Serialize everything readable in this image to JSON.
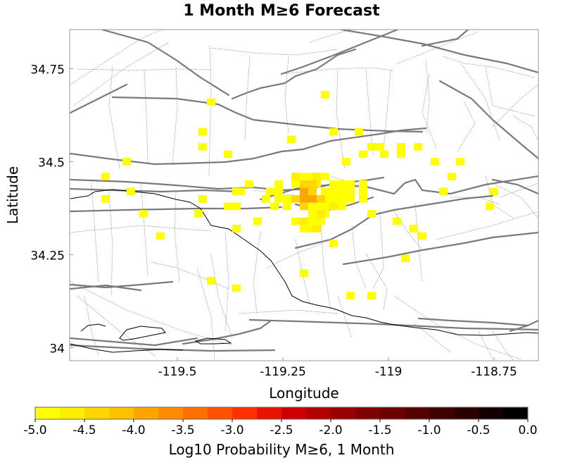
{
  "chart_data": {
    "type": "heatmap",
    "title": "1 Month M≥6 Forecast",
    "xlabel": "Longitude",
    "ylabel": "Latitude",
    "xlim": [
      -119.755,
      -118.645
    ],
    "ylim": [
      33.965,
      34.855
    ],
    "x_ticks": [
      {
        "value": -119.5,
        "label": "-119.5"
      },
      {
        "value": -119.25,
        "label": "-119.25"
      },
      {
        "value": -119.0,
        "label": "-119"
      },
      {
        "value": -118.75,
        "label": "-118.75"
      }
    ],
    "y_ticks": [
      {
        "value": 34.75,
        "label": "34.75"
      },
      {
        "value": 34.5,
        "label": "34.5"
      },
      {
        "value": 34.25,
        "label": "34.25"
      },
      {
        "value": 34.0,
        "label": "34"
      }
    ],
    "grid": false,
    "cell_size_deg": 0.02,
    "cell_value_scale": "Log10 Probability M≥6, 1 Month",
    "cells": [
      [
        -119.42,
        34.66,
        -4.9
      ],
      [
        -119.15,
        34.68,
        -4.9
      ],
      [
        -119.44,
        34.58,
        -4.9
      ],
      [
        -119.23,
        34.56,
        -4.9
      ],
      [
        -119.13,
        34.58,
        -4.9
      ],
      [
        -119.07,
        34.58,
        -4.9
      ],
      [
        -119.44,
        34.54,
        -4.9
      ],
      [
        -119.38,
        34.52,
        -4.9
      ],
      [
        -119.06,
        34.52,
        -4.9
      ],
      [
        -119.04,
        34.54,
        -4.9
      ],
      [
        -119.02,
        34.54,
        -4.9
      ],
      [
        -119.01,
        34.52,
        -4.9
      ],
      [
        -118.97,
        34.54,
        -4.9
      ],
      [
        -118.97,
        34.52,
        -4.9
      ],
      [
        -118.93,
        34.54,
        -4.9
      ],
      [
        -119.62,
        34.5,
        -4.9
      ],
      [
        -119.1,
        34.5,
        -4.9
      ],
      [
        -118.89,
        34.5,
        -4.9
      ],
      [
        -118.83,
        34.5,
        -4.9
      ],
      [
        -119.67,
        34.46,
        -4.9
      ],
      [
        -119.2,
        34.46,
        -4.9
      ],
      [
        -119.18,
        34.46,
        -4.9
      ],
      [
        -119.15,
        34.46,
        -4.9
      ],
      [
        -119.33,
        34.44,
        -4.9
      ],
      [
        -119.26,
        34.44,
        -4.9
      ],
      [
        -119.22,
        34.44,
        -4.9
      ],
      [
        -119.13,
        34.44,
        -4.9
      ],
      [
        -119.11,
        34.44,
        -4.9
      ],
      [
        -119.09,
        34.44,
        -4.9
      ],
      [
        -119.06,
        34.44,
        -4.9
      ],
      [
        -118.85,
        34.46,
        -4.9
      ],
      [
        -119.61,
        34.42,
        -4.9
      ],
      [
        -119.36,
        34.42,
        -4.9
      ],
      [
        -119.35,
        34.42,
        -4.9
      ],
      [
        -119.28,
        34.42,
        -4.9
      ],
      [
        -119.26,
        34.42,
        -4.9
      ],
      [
        -119.15,
        34.42,
        -4.9
      ],
      [
        -119.13,
        34.42,
        -4.9
      ],
      [
        -119.11,
        34.42,
        -4.9
      ],
      [
        -119.09,
        34.42,
        -4.9
      ],
      [
        -119.06,
        34.42,
        -4.9
      ],
      [
        -118.87,
        34.42,
        -4.9
      ],
      [
        -118.75,
        34.42,
        -4.9
      ],
      [
        -119.67,
        34.4,
        -4.9
      ],
      [
        -119.44,
        34.4,
        -4.9
      ],
      [
        -119.29,
        34.4,
        -4.9
      ],
      [
        -119.26,
        34.4,
        -4.9
      ],
      [
        -119.24,
        34.4,
        -4.9
      ],
      [
        -119.22,
        34.4,
        -4.9
      ],
      [
        -119.15,
        34.4,
        -4.9
      ],
      [
        -119.13,
        34.4,
        -4.9
      ],
      [
        -119.11,
        34.4,
        -4.9
      ],
      [
        -119.09,
        34.4,
        -4.9
      ],
      [
        -119.06,
        34.4,
        -4.9
      ],
      [
        -119.38,
        34.38,
        -4.9
      ],
      [
        -119.36,
        34.38,
        -4.9
      ],
      [
        -119.27,
        34.38,
        -4.9
      ],
      [
        -119.24,
        34.38,
        -4.9
      ],
      [
        -119.18,
        34.38,
        -4.9
      ],
      [
        -119.16,
        34.38,
        -4.9
      ],
      [
        -119.15,
        34.38,
        -4.9
      ],
      [
        -119.13,
        34.38,
        -4.9
      ],
      [
        -119.11,
        34.38,
        -4.9
      ],
      [
        -118.76,
        34.38,
        -4.9
      ],
      [
        -119.58,
        34.36,
        -4.9
      ],
      [
        -119.45,
        34.36,
        -4.9
      ],
      [
        -119.18,
        34.36,
        -4.9
      ],
      [
        -119.15,
        34.36,
        -4.9
      ],
      [
        -119.04,
        34.36,
        -4.9
      ],
      [
        -119.31,
        34.34,
        -4.9
      ],
      [
        -119.22,
        34.34,
        -4.9
      ],
      [
        -119.18,
        34.34,
        -4.9
      ],
      [
        -119.16,
        34.34,
        -4.9
      ],
      [
        -118.98,
        34.34,
        -4.9
      ],
      [
        -119.36,
        34.32,
        -4.9
      ],
      [
        -119.2,
        34.32,
        -4.9
      ],
      [
        -119.18,
        34.32,
        -4.9
      ],
      [
        -118.94,
        34.32,
        -4.9
      ],
      [
        -119.54,
        34.3,
        -4.9
      ],
      [
        -118.92,
        34.3,
        -4.9
      ],
      [
        -119.13,
        34.28,
        -4.9
      ],
      [
        -118.96,
        34.24,
        -4.9
      ],
      [
        -119.2,
        34.2,
        -4.9
      ],
      [
        -119.42,
        34.18,
        -4.9
      ],
      [
        -119.36,
        34.16,
        -4.9
      ],
      [
        -119.09,
        34.14,
        -4.9
      ],
      [
        -119.04,
        34.14,
        -4.9
      ],
      [
        -119.22,
        34.46,
        -4.6
      ],
      [
        -119.17,
        34.46,
        -4.6
      ],
      [
        -119.17,
        34.44,
        -4.6
      ],
      [
        -119.2,
        34.42,
        -4.6
      ],
      [
        -119.13,
        34.38,
        -4.6
      ],
      [
        -119.16,
        34.36,
        -4.6
      ],
      [
        -119.2,
        34.34,
        -4.6
      ],
      [
        -119.17,
        34.32,
        -4.6
      ],
      [
        -119.2,
        34.44,
        -4.3
      ],
      [
        -119.18,
        34.44,
        -4.3
      ],
      [
        -119.18,
        34.42,
        -4.3
      ],
      [
        -119.22,
        34.4,
        -4.3
      ],
      [
        -119.16,
        34.4,
        -4.3
      ],
      [
        -119.2,
        34.38,
        -4.3
      ],
      [
        -119.2,
        34.42,
        -4.0
      ],
      [
        -119.2,
        34.4,
        -4.0
      ],
      [
        -119.18,
        34.4,
        -4.0
      ]
    ],
    "colorbar": {
      "label": "Log10 Probability M≥6, 1 Month",
      "min": -5.0,
      "max": 0.0,
      "ticks": [
        "-5.0",
        "-4.5",
        "-4.0",
        "-3.5",
        "-3.0",
        "-2.5",
        "-2.0",
        "-1.5",
        "-1.0",
        "-0.5",
        "0.0"
      ],
      "colors": [
        "#ffff00",
        "#ffee00",
        "#ffd700",
        "#ffc100",
        "#ffa500",
        "#ff8c00",
        "#ff7000",
        "#ff5200",
        "#ff3000",
        "#e81400",
        "#cc0000",
        "#b20000",
        "#990000",
        "#7f0000",
        "#6a0000",
        "#560000",
        "#400000",
        "#2b0000",
        "#120000",
        "#000000"
      ]
    }
  }
}
